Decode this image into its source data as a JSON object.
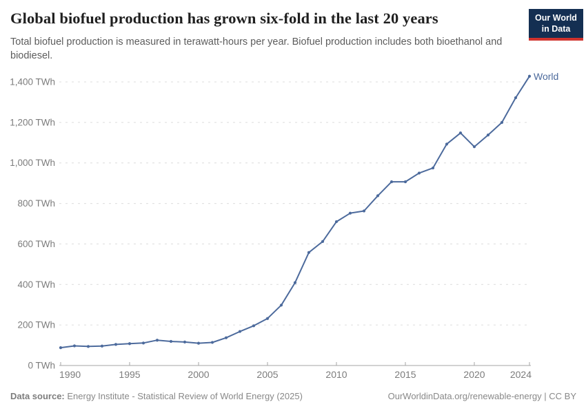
{
  "header": {
    "title": "Global biofuel production has grown six-fold in the last 20 years",
    "subtitle": "Total biofuel production is measured in terawatt-hours per year. Biofuel production includes both bioethanol and biodiesel.",
    "logo": {
      "line1": "Our World",
      "line2": "in Data",
      "bg_color": "#142f52",
      "bar_color": "#d0332e"
    }
  },
  "chart_data": {
    "type": "line",
    "title": "Global biofuel production has grown six-fold in the last 20 years",
    "unit": "TWh",
    "x": [
      1990,
      1991,
      1992,
      1993,
      1994,
      1995,
      1996,
      1997,
      1998,
      1999,
      2000,
      2001,
      2002,
      2003,
      2004,
      2005,
      2006,
      2007,
      2008,
      2009,
      2010,
      2011,
      2012,
      2013,
      2014,
      2015,
      2016,
      2017,
      2018,
      2019,
      2020,
      2021,
      2022,
      2023,
      2024
    ],
    "series": [
      {
        "name": "World",
        "color": "#4c6a9c",
        "values": [
          88,
          97,
          94,
          96,
          104,
          108,
          111,
          125,
          119,
          116,
          110,
          114,
          137,
          168,
          196,
          232,
          298,
          409,
          558,
          612,
          710,
          752,
          763,
          838,
          907,
          907,
          950,
          975,
          1093,
          1148,
          1080,
          1138,
          1200,
          1322,
          1428
        ]
      }
    ],
    "xlim": [
      1990,
      2024
    ],
    "ylim": [
      0,
      1400
    ],
    "y_ticks": [
      0,
      200,
      400,
      600,
      800,
      1000,
      1200,
      1400
    ],
    "x_ticks": [
      1990,
      1995,
      2000,
      2005,
      2010,
      2015,
      2020,
      2024
    ],
    "grid": "horizontal-dashed",
    "legend_position": "end-of-line-label",
    "colors": {
      "line": "#4c6a9c",
      "grid": "#dcdcdc",
      "axis": "#a6a6a6",
      "tick_label": "#7c7c7c"
    }
  },
  "footer": {
    "source_label": "Data source:",
    "source_text": "Energy Institute - Statistical Review of World Energy (2025)",
    "credit": "OurWorldinData.org/renewable-energy | CC BY"
  }
}
